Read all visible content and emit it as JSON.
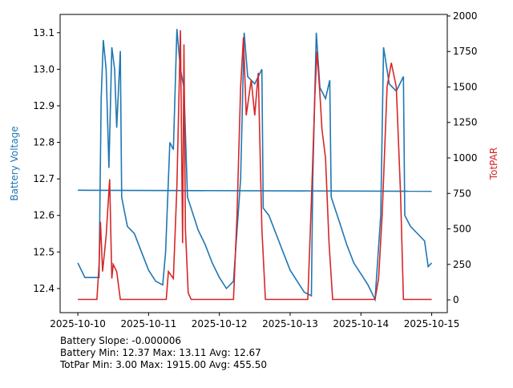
{
  "chart_data": {
    "type": "line",
    "ylabel": "Battery Voltage",
    "y2label": "TotPAR",
    "xlim": [
      -0.25,
      5.22
    ],
    "xticks": [
      {
        "value": 0,
        "label": "2025-10-10"
      },
      {
        "value": 1,
        "label": "2025-10-11"
      },
      {
        "value": 2,
        "label": "2025-10-12"
      },
      {
        "value": 3,
        "label": "2025-10-13"
      },
      {
        "value": 4,
        "label": "2025-10-14"
      },
      {
        "value": 5,
        "label": "2025-10-15"
      }
    ],
    "ylim": [
      12.334,
      13.15
    ],
    "yticks": [
      {
        "value": 12.4,
        "label": "12.4"
      },
      {
        "value": 12.5,
        "label": "12.5"
      },
      {
        "value": 12.6,
        "label": "12.6"
      },
      {
        "value": 12.7,
        "label": "12.7"
      },
      {
        "value": 12.8,
        "label": "12.8"
      },
      {
        "value": 12.9,
        "label": "12.9"
      },
      {
        "value": 13.0,
        "label": "13.0"
      },
      {
        "value": 13.1,
        "label": "13.1"
      }
    ],
    "y2lim": [
      -90,
      2011
    ],
    "y2ticks": [
      0,
      250,
      500,
      750,
      1000,
      1250,
      1500,
      1750,
      2000
    ],
    "series": [
      {
        "color": "#1f77b4",
        "x": [
          0,
          0.1,
          0.2,
          0.3,
          0.33,
          0.36,
          0.4,
          0.44,
          0.48,
          0.52,
          0.55,
          0.6,
          0.62,
          0.7,
          0.8,
          0.9,
          1.0,
          1.1,
          1.2,
          1.24,
          1.3,
          1.35,
          1.4,
          1.45,
          1.5,
          1.55,
          1.6,
          1.7,
          1.8,
          1.9,
          2.0,
          2.1,
          2.2,
          2.3,
          2.35,
          2.4,
          2.5,
          2.6,
          2.62,
          2.7,
          2.8,
          2.9,
          3.0,
          3.1,
          3.2,
          3.3,
          3.32,
          3.37,
          3.42,
          3.5,
          3.56,
          3.58,
          3.7,
          3.8,
          3.9,
          4.0,
          4.1,
          4.2,
          4.28,
          4.32,
          4.4,
          4.5,
          4.6,
          4.62,
          4.7,
          4.8,
          4.9,
          4.95,
          5.0
        ],
        "values": [
          12.47,
          12.43,
          12.43,
          12.43,
          12.92,
          13.08,
          13.0,
          12.73,
          13.06,
          13.0,
          12.84,
          13.05,
          12.65,
          12.57,
          12.55,
          12.5,
          12.45,
          12.42,
          12.41,
          12.5,
          12.8,
          12.78,
          13.11,
          13.0,
          12.95,
          12.65,
          12.62,
          12.56,
          12.52,
          12.47,
          12.43,
          12.4,
          12.42,
          12.7,
          13.1,
          12.98,
          12.96,
          13.0,
          12.62,
          12.6,
          12.55,
          12.5,
          12.45,
          12.42,
          12.39,
          12.38,
          12.7,
          13.1,
          12.95,
          12.92,
          12.97,
          12.65,
          12.58,
          12.52,
          12.47,
          12.44,
          12.41,
          12.37,
          12.6,
          13.06,
          12.96,
          12.94,
          12.98,
          12.6,
          12.57,
          12.55,
          12.53,
          12.46,
          12.47
        ]
      },
      {
        "color": "#1f77b4",
        "x": [
          0,
          5
        ],
        "values": [
          12.669,
          12.666
        ]
      },
      {
        "color": "#d62728",
        "axis": "y2",
        "x": [
          0,
          0.27,
          0.3,
          0.32,
          0.35,
          0.4,
          0.45,
          0.48,
          0.5,
          0.55,
          0.6,
          1.25,
          1.28,
          1.35,
          1.4,
          1.45,
          1.48,
          1.5,
          1.52,
          1.56,
          1.6,
          2.2,
          2.25,
          2.3,
          2.34,
          2.38,
          2.45,
          2.5,
          2.55,
          2.6,
          2.65,
          3.25,
          3.3,
          3.35,
          3.38,
          3.42,
          3.45,
          3.5,
          3.55,
          3.6,
          4.2,
          4.25,
          4.3,
          4.37,
          4.43,
          4.5,
          4.56,
          4.6,
          5.0
        ],
        "values": [
          3,
          3,
          250,
          550,
          200,
          450,
          850,
          150,
          250,
          200,
          3,
          3,
          200,
          150,
          800,
          1900,
          400,
          1800,
          500,
          50,
          3,
          3,
          600,
          1500,
          1850,
          1300,
          1550,
          1300,
          1600,
          500,
          3,
          3,
          700,
          1450,
          1750,
          1450,
          1200,
          1000,
          400,
          3,
          3,
          150,
          600,
          1500,
          1670,
          1500,
          750,
          3,
          3
        ]
      }
    ],
    "notes": [
      "Battery Slope: -0.000006",
      "Battery Min: 12.37 Max: 13.11 Avg: 12.67",
      "TotPar Min: 3.00 Max: 1915.00 Avg: 455.50"
    ]
  }
}
